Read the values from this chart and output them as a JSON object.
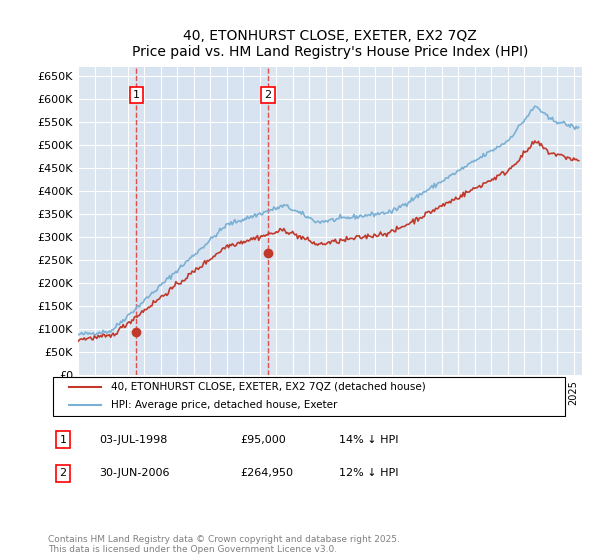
{
  "title": "40, ETONHURST CLOSE, EXETER, EX2 7QZ",
  "subtitle": "Price paid vs. HM Land Registry's House Price Index (HPI)",
  "ylim": [
    0,
    670000
  ],
  "yticks": [
    0,
    50000,
    100000,
    150000,
    200000,
    250000,
    300000,
    350000,
    400000,
    450000,
    500000,
    550000,
    600000,
    650000
  ],
  "background_color": "#ffffff",
  "plot_bg_color": "#dce6f1",
  "grid_color": "#ffffff",
  "hpi_color": "#7ab0d4",
  "price_color": "#c0392b",
  "dashed_line_color": "#e05050",
  "purchase1_date": 1998.54,
  "purchase1_price": 95000,
  "purchase2_date": 2006.5,
  "purchase2_price": 264950,
  "legend_label1": "40, ETONHURST CLOSE, EXETER, EX2 7QZ (detached house)",
  "legend_label2": "HPI: Average price, detached house, Exeter",
  "footer": "Contains HM Land Registry data © Crown copyright and database right 2025.\nThis data is licensed under the Open Government Licence v3.0.",
  "sale_info": [
    {
      "label": "1",
      "date": "03-JUL-1998",
      "price": "£95,000",
      "hpi": "14% ↓ HPI"
    },
    {
      "label": "2",
      "date": "30-JUN-2006",
      "price": "£264,950",
      "hpi": "12% ↓ HPI"
    }
  ]
}
